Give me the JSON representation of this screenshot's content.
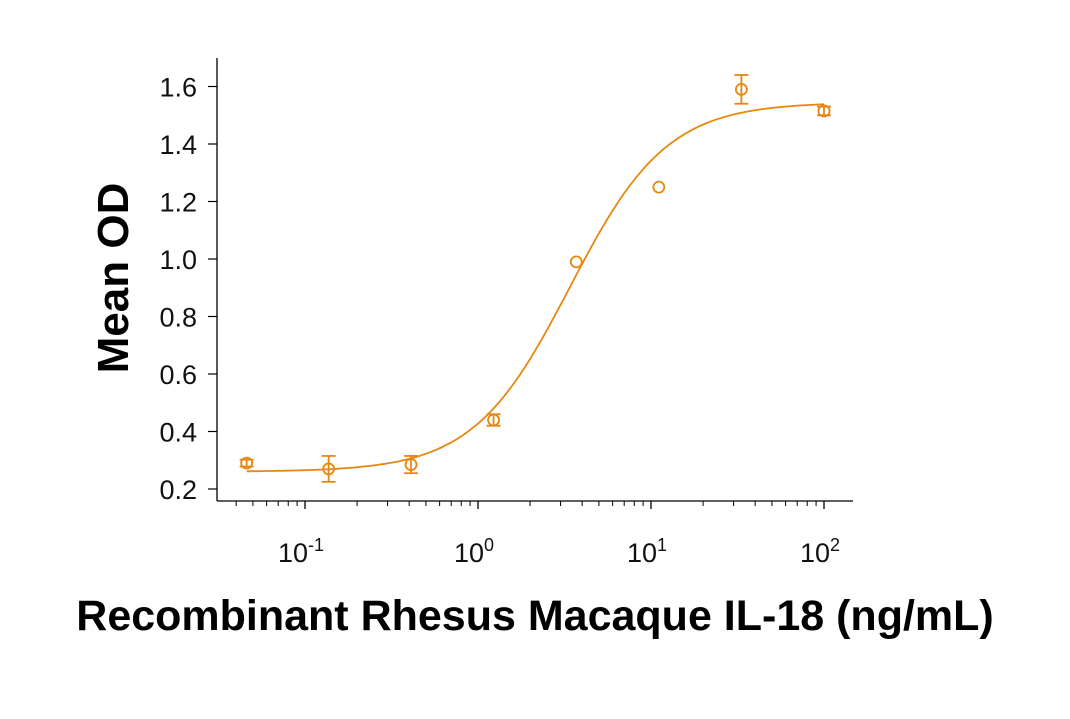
{
  "chart_data": {
    "type": "scatter",
    "title": "",
    "xlabel": "Recombinant Rhesus Macaque IL-18 (ng/mL)",
    "ylabel": "Mean OD",
    "xscale": "log",
    "xlim": [
      0.031,
      140
    ],
    "ylim": [
      0.16,
      1.72
    ],
    "x_ticks": [
      {
        "value": 0.1,
        "base": "10",
        "exp": "-1"
      },
      {
        "value": 1,
        "base": "10",
        "exp": "0"
      },
      {
        "value": 10,
        "base": "10",
        "exp": "1"
      },
      {
        "value": 100,
        "base": "10",
        "exp": "2"
      }
    ],
    "y_ticks": [
      "0.2",
      "0.4",
      "0.6",
      "0.8",
      "1.0",
      "1.2",
      "1.4",
      "1.6"
    ],
    "grid": false,
    "legend": null,
    "color": "#e8870f",
    "series": [
      {
        "name": "Mean OD",
        "marker": "open-circle",
        "x": [
          0.046,
          0.137,
          0.41,
          1.23,
          3.7,
          11.1,
          33.3,
          100
        ],
        "y": [
          0.29,
          0.27,
          0.285,
          0.44,
          0.99,
          1.25,
          1.59,
          1.515
        ],
        "error": [
          0.012,
          0.045,
          0.03,
          0.02,
          0.0,
          0.0,
          0.05,
          0.015
        ]
      }
    ],
    "fit_curve": {
      "type": "4PL",
      "bottom": 0.26,
      "top": 1.545,
      "ec50": 3.4,
      "hill": 1.55
    }
  }
}
